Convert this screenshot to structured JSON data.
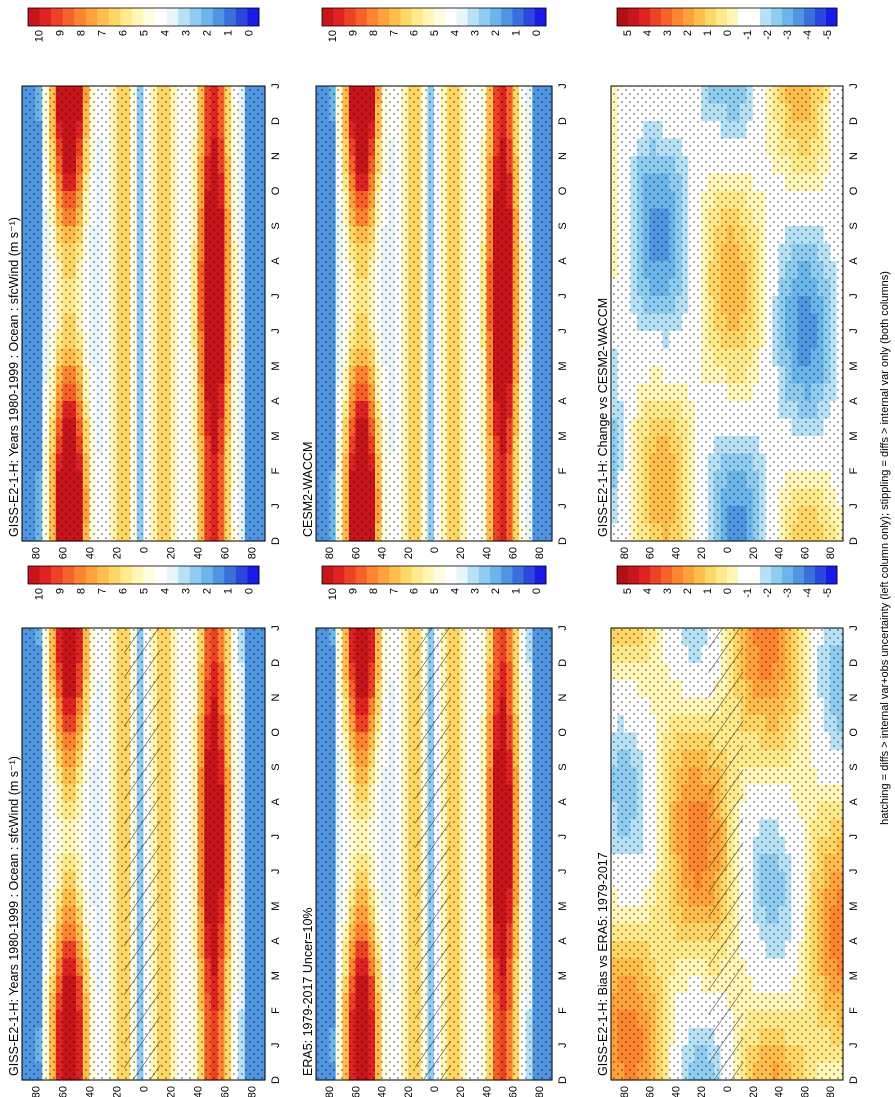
{
  "figure": {
    "footnote": "hatching = diffs > internal var+obs uncertainty (left column only); stippling = diffs > internal var only (both columns)"
  },
  "colors": {
    "abs_scale": [
      "#1a1ae6",
      "#2a48e0",
      "#3a6fdc",
      "#4f95e0",
      "#6ab6ea",
      "#8fcdf0",
      "#b7e2f6",
      "#e8f6fb",
      "#ffffff",
      "#fffde0",
      "#fff6b8",
      "#ffeb8c",
      "#ffd766",
      "#ffbe4c",
      "#ffa23b",
      "#fd8430",
      "#f7622a",
      "#ee4225",
      "#e02222",
      "#c8141b"
    ],
    "diff_scale": [
      "#1a1ae6",
      "#2a48e0",
      "#3a6fdc",
      "#4f95e0",
      "#6ab6ea",
      "#8fcdf0",
      "#b7e2f6",
      "#ffffff",
      "#ffffff",
      "#fff6b8",
      "#ffeb8c",
      "#ffd766",
      "#ffbe4c",
      "#ffa23b",
      "#fd8430",
      "#f7622a",
      "#ee4225",
      "#e02222",
      "#c8141b",
      "#b01018"
    ]
  },
  "chart_data": [
    {
      "type": "heatmap",
      "panel": "left-top",
      "title": "GISS-E2-1-H: Years 1980-1999 : Ocean : sfcWind (m s⁻¹)",
      "variable": "sfcWind",
      "units": "m s-1",
      "months": [
        "D",
        "J",
        "F",
        "M",
        "A",
        "M",
        "J",
        "J",
        "A",
        "S",
        "O",
        "N",
        "D",
        "J"
      ],
      "lat_ticks": [
        "80",
        "60",
        "40",
        "20",
        "0",
        "20",
        "40",
        "60",
        "80"
      ],
      "lat_range": [
        -90,
        90
      ],
      "colorbar_ticks": [
        "10",
        "9",
        "8",
        "7",
        "6",
        "5",
        "4",
        "3",
        "2",
        "1",
        "0"
      ],
      "colorbar_range": [
        0,
        10
      ],
      "hatching": true,
      "stippling": true
    },
    {
      "type": "heatmap",
      "panel": "right-top",
      "title": "GISS-E2-1-H: Years 1980-1999 : Ocean : sfcWind (m s⁻¹)",
      "variable": "sfcWind",
      "units": "m s-1",
      "months": [
        "D",
        "J",
        "F",
        "M",
        "A",
        "M",
        "J",
        "J",
        "A",
        "S",
        "O",
        "N",
        "D",
        "J"
      ],
      "lat_ticks": [
        "80",
        "60",
        "40",
        "20",
        "0",
        "20",
        "40",
        "60",
        "80"
      ],
      "lat_range": [
        -90,
        90
      ],
      "colorbar_ticks": [
        "10",
        "9",
        "8",
        "7",
        "6",
        "5",
        "4",
        "3",
        "2",
        "1",
        "0"
      ],
      "colorbar_range": [
        0,
        10
      ],
      "hatching": false,
      "stippling": true
    },
    {
      "type": "heatmap",
      "panel": "left-middle",
      "title": "ERA5: 1979-2017 Uncer=10%",
      "months": [
        "D",
        "J",
        "F",
        "M",
        "A",
        "M",
        "J",
        "J",
        "A",
        "S",
        "O",
        "N",
        "D",
        "J"
      ],
      "lat_ticks": [
        "80",
        "60",
        "40",
        "20",
        "0",
        "20",
        "40",
        "60",
        "80"
      ],
      "lat_range": [
        -90,
        90
      ],
      "colorbar_ticks": [
        "10",
        "9",
        "8",
        "7",
        "6",
        "5",
        "4",
        "3",
        "2",
        "1",
        "0"
      ],
      "colorbar_range": [
        0,
        10
      ],
      "hatching": true,
      "stippling": true
    },
    {
      "type": "heatmap",
      "panel": "right-middle",
      "title": "CESM2-WACCM",
      "months": [
        "D",
        "J",
        "F",
        "M",
        "A",
        "M",
        "J",
        "J",
        "A",
        "S",
        "O",
        "N",
        "D",
        "J"
      ],
      "lat_ticks": [
        "80",
        "60",
        "40",
        "20",
        "0",
        "20",
        "40",
        "60",
        "80"
      ],
      "lat_range": [
        -90,
        90
      ],
      "colorbar_ticks": [
        "10",
        "9",
        "8",
        "7",
        "6",
        "5",
        "4",
        "3",
        "2",
        "1",
        "0"
      ],
      "colorbar_range": [
        0,
        10
      ],
      "hatching": false,
      "stippling": true
    },
    {
      "type": "heatmap",
      "panel": "left-bottom",
      "title": "GISS-E2-1-H: Bias vs ERA5: 1979-2017",
      "months": [
        "D",
        "J",
        "F",
        "M",
        "A",
        "M",
        "J",
        "J",
        "A",
        "S",
        "O",
        "N",
        "D",
        "J"
      ],
      "lat_ticks": [
        "80",
        "60",
        "40",
        "20",
        "0",
        "20",
        "40",
        "60",
        "80"
      ],
      "lat_range": [
        -90,
        90
      ],
      "colorbar_ticks": [
        "5",
        "4",
        "3",
        "2",
        "1",
        "0",
        "-1",
        "-2",
        "-3",
        "-4",
        "-5"
      ],
      "colorbar_range": [
        -5,
        5
      ],
      "hatching": true,
      "stippling": true
    },
    {
      "type": "heatmap",
      "panel": "right-bottom",
      "title": "GISS-E2-1-H: Change vs CESM2-WACCM",
      "months": [
        "D",
        "J",
        "F",
        "M",
        "A",
        "M",
        "J",
        "J",
        "A",
        "S",
        "O",
        "N",
        "D",
        "J"
      ],
      "lat_ticks": [
        "80",
        "60",
        "40",
        "20",
        "0",
        "20",
        "40",
        "60",
        "80"
      ],
      "lat_range": [
        -90,
        90
      ],
      "colorbar_ticks": [
        "5",
        "4",
        "3",
        "2",
        "1",
        "0",
        "-1",
        "-2",
        "-3",
        "-4",
        "-5"
      ],
      "colorbar_range": [
        -5,
        5
      ],
      "hatching": false,
      "stippling": true
    }
  ]
}
